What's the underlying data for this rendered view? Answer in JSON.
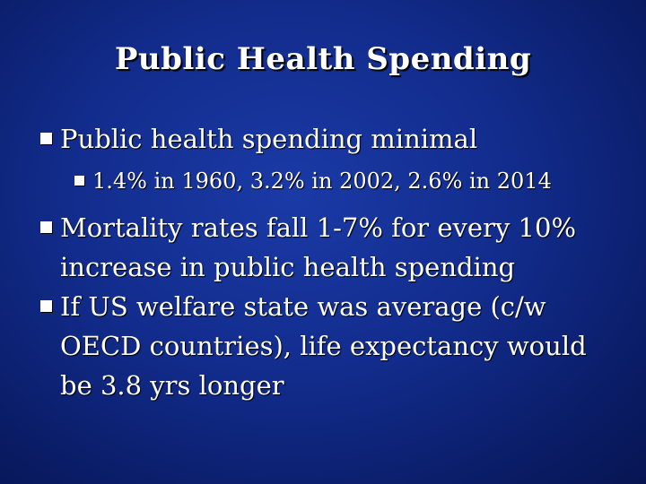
{
  "slide": {
    "title": "Public Health Spending",
    "bullets": [
      {
        "text": "Public health spending minimal",
        "sub": [
          "1.4% in 1960, 3.2% in 2002, 2.6% in 2014"
        ]
      },
      {
        "text": "Mortality rates fall 1-7% for every 10% increase in public health spending"
      },
      {
        "text": "If US welfare state was average (c/w OECD countries), life expectancy would be 3.8 yrs longer"
      }
    ]
  },
  "colors": {
    "background": "#122c8c",
    "text": "#ffffff"
  },
  "icons": {
    "bullet": "square-bullet-icon"
  }
}
